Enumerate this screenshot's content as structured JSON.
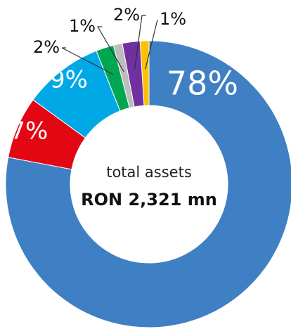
{
  "chart_data": {
    "type": "donut",
    "center_label": "total assets",
    "center_value": "RON 2,321 mn",
    "values": [
      78,
      7,
      9,
      2,
      1,
      2,
      1
    ],
    "value_labels": [
      "78%",
      "7%",
      "9%",
      "2%",
      "1%",
      "2%",
      "1%"
    ],
    "colors": [
      "#3f7fc4",
      "#e30613",
      "#00a8e6",
      "#00a651",
      "#bdbdbd",
      "#7030a0",
      "#ffc000"
    ]
  }
}
